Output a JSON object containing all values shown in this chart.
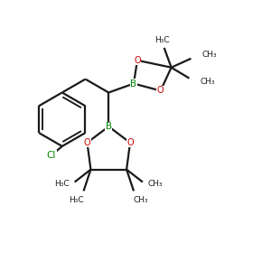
{
  "bg_color": "#ffffff",
  "bond_color": "#1a1a1a",
  "B_color": "#008000",
  "O_color": "#cc0000",
  "Cl_color": "#008000",
  "line_width": 1.6,
  "font_size": 7.0,
  "fig_size": [
    3.0,
    3.0
  ],
  "dpi": 100,
  "xlim": [
    0,
    300
  ],
  "ylim": [
    0,
    300
  ]
}
